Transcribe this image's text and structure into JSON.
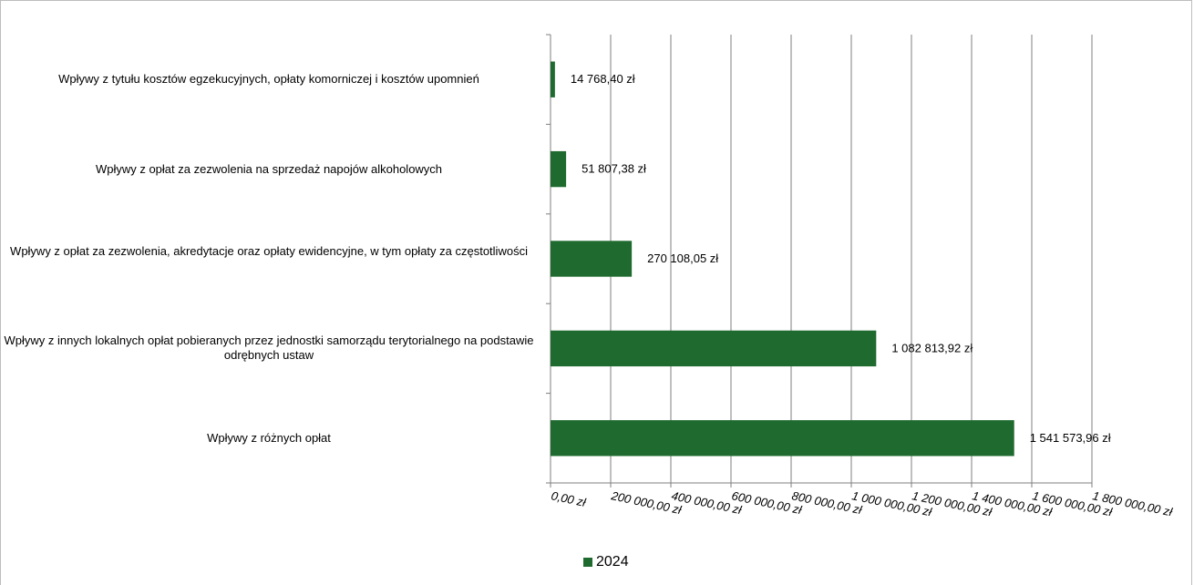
{
  "chart_data": {
    "type": "bar",
    "orientation": "horizontal",
    "categories": [
      "Wpływy z tytułu kosztów egzekucyjnych, opłaty komorniczej i kosztów upomnień",
      "Wpływy z opłat za zezwolenia na sprzedaż napojów alkoholowych",
      "Wpływy z opłat za zezwolenia, akredytacje oraz opłaty ewidencyjne, w tym opłaty za częstotliwości",
      "Wpływy z innych lokalnych opłat pobieranych przez jednostki samorządu terytorialnego na podstawie odrębnych ustaw",
      "Wpływy z różnych opłat"
    ],
    "series": [
      {
        "name": "2024",
        "color": "#1f6b2f",
        "values": [
          14768.4,
          51807.38,
          270108.05,
          1082813.92,
          1541573.96
        ],
        "data_labels": [
          "14 768,40 zł",
          "51 807,38 zł",
          "270 108,05 zł",
          "1 082 813,92 zł",
          "1 541 573,96 zł"
        ]
      }
    ],
    "xlim": [
      0,
      1800000
    ],
    "x_ticks": [
      0,
      200000,
      400000,
      600000,
      800000,
      1000000,
      1200000,
      1400000,
      1600000,
      1800000
    ],
    "x_tick_labels": [
      "0,00 zł",
      "200 000,00 zł",
      "400 000,00 zł",
      "600 000,00 zł",
      "800 000,00 zł",
      "1 000 000,00 zł",
      "1 200 000,00 zł",
      "1 400 000,00 zł",
      "1 600 000,00 zł",
      "1 800 000,00 zł"
    ],
    "grid": "vertical major gridlines",
    "legend": "bottom",
    "title": "",
    "xlabel": "",
    "ylabel": ""
  }
}
